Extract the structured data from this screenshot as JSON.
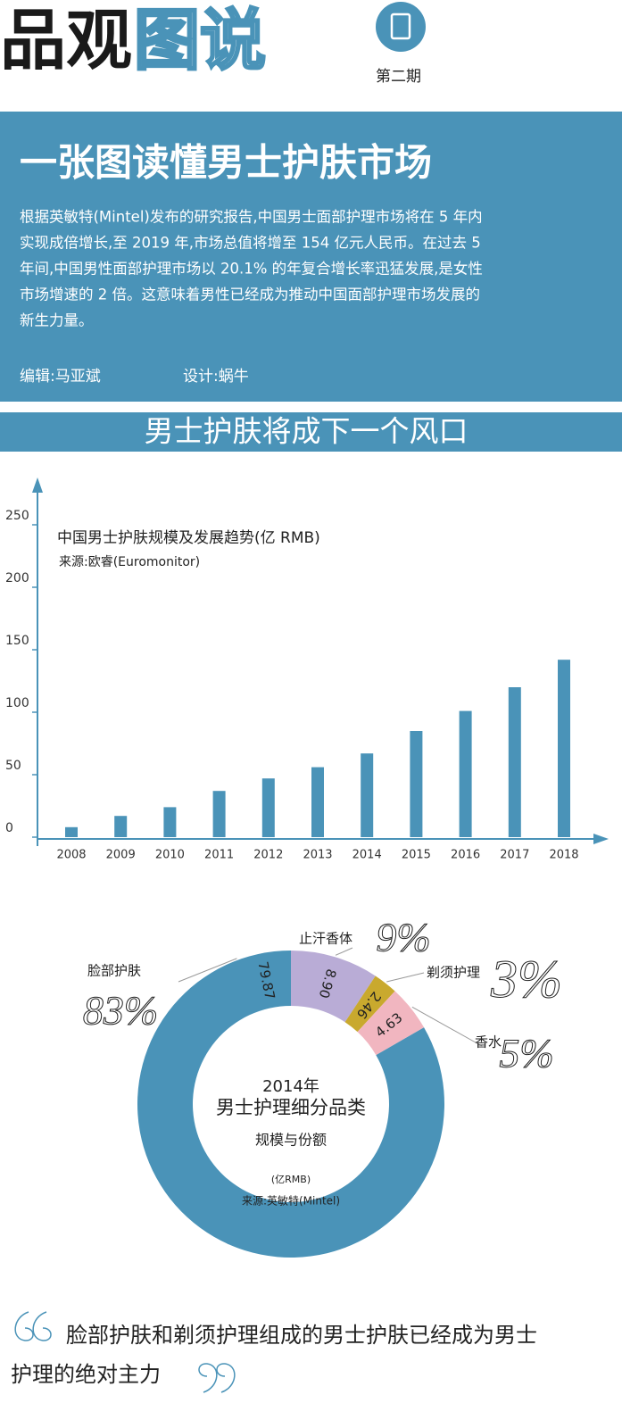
{
  "header": {
    "logo_black": "品观",
    "logo_blue": "图说",
    "issue": "第二期"
  },
  "intro": {
    "title": "一张图读懂男士护肤市场",
    "lines": [
      "根据英敏特(Mintel)发布的研究报告,中国男士面部护理市场将在 5 年内",
      "实现成倍增长,至 2019 年,市场总值将增至 154 亿元人民币。在过去 5",
      "年间,中国男性面部护理市场以 20.1% 的年复合增长率迅猛发展,是女性",
      "市场增速的 2 倍。这意味着男性已经成为推动中国面部护理市场发展的",
      "新生力量。"
    ],
    "editor": "编辑:马亚斌",
    "designer": "设计:蜗牛"
  },
  "section_title": "男士护肤将成下一个风口",
  "chart_data": [
    {
      "type": "bar",
      "title": "中国男士护肤规模及发展趋势(亿 RMB)",
      "subtitle": "来源:欧睿(Euromonitor)",
      "categories": [
        "2008",
        "2009",
        "2010",
        "2011",
        "2012",
        "2013",
        "2014",
        "2015",
        "2016",
        "2017",
        "2018"
      ],
      "values": [
        8,
        17,
        24,
        37,
        47,
        56,
        67,
        85,
        101,
        120,
        142
      ],
      "color": "#4a93b8",
      "ylim": [
        0,
        250
      ],
      "yticks": [
        0,
        50,
        100,
        150,
        200,
        250
      ]
    },
    {
      "type": "pie",
      "title": "2014年",
      "subtitle": "男士护理细分品类",
      "subtitle2": "规模与份额",
      "unit": "(亿RMB)",
      "source": "来源:英敏特(Mintel)",
      "categories": [
        "脸部护肤",
        "止汗香体",
        "剃须护理",
        "香水"
      ],
      "values": [
        79.87,
        8.9,
        2.46,
        4.63
      ],
      "value_labels": [
        "79.87",
        "8.90",
        "2.46",
        "4.63"
      ],
      "share_labels": [
        "83%",
        "9%",
        "3%",
        "5%"
      ],
      "colors": [
        "#4a93b8",
        "#b9acd6",
        "#c9a92e",
        "#f1b6c0"
      ]
    }
  ],
  "quote": {
    "lines": [
      "脸部护肤和剃须护理组成的男士护肤已经成为男士",
      "护理的绝对主力"
    ]
  }
}
